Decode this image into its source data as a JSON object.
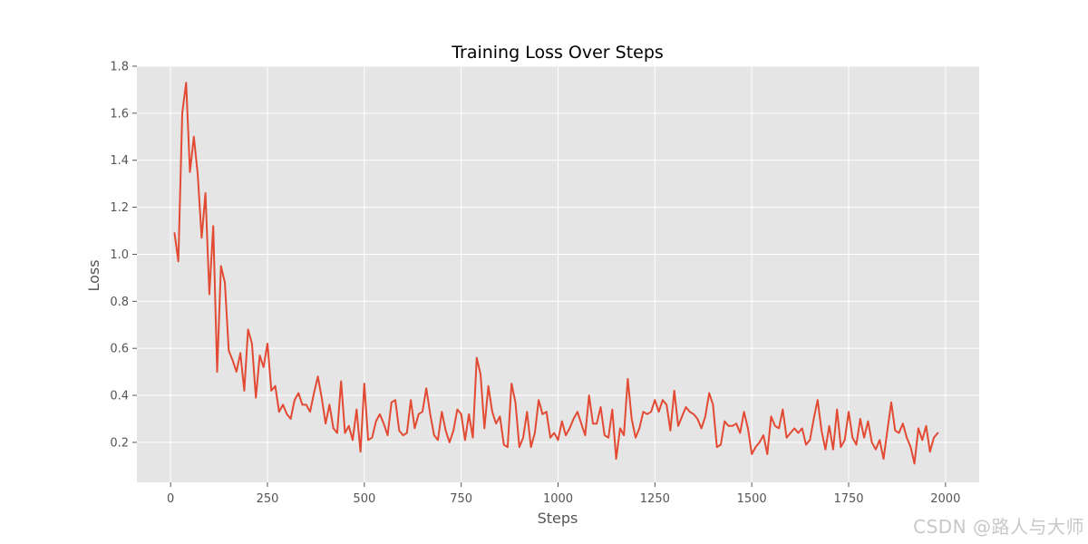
{
  "chart_data": {
    "type": "line",
    "title": "Training Loss Over Steps",
    "xlabel": "Steps",
    "ylabel": "Loss",
    "xlim": [
      -87,
      2087
    ],
    "ylim": [
      0.03,
      1.8
    ],
    "xticks": [
      0,
      250,
      500,
      750,
      1000,
      1250,
      1500,
      1750,
      2000
    ],
    "xtick_labels": [
      "0",
      "250",
      "500",
      "750",
      "1000",
      "1250",
      "1500",
      "1750",
      "2000"
    ],
    "yticks": [
      0.2,
      0.4,
      0.6,
      0.8,
      1.0,
      1.2,
      1.4,
      1.6,
      1.8
    ],
    "ytick_labels": [
      "0.2",
      "0.4",
      "0.6",
      "0.8",
      "1.0",
      "1.2",
      "1.4",
      "1.6",
      "1.8"
    ],
    "grid": true,
    "background": "#e5e5e5",
    "series": [
      {
        "name": "loss",
        "color": "#e24a33",
        "x": [
          10,
          20,
          30,
          40,
          50,
          60,
          70,
          80,
          90,
          100,
          110,
          120,
          130,
          140,
          150,
          160,
          170,
          180,
          190,
          200,
          210,
          220,
          230,
          240,
          250,
          260,
          270,
          280,
          290,
          300,
          310,
          320,
          330,
          340,
          350,
          360,
          370,
          380,
          390,
          400,
          410,
          420,
          430,
          440,
          450,
          460,
          470,
          480,
          490,
          500,
          510,
          520,
          530,
          540,
          550,
          560,
          570,
          580,
          590,
          600,
          610,
          620,
          630,
          640,
          650,
          660,
          670,
          680,
          690,
          700,
          710,
          720,
          730,
          740,
          750,
          760,
          770,
          780,
          790,
          800,
          810,
          820,
          830,
          840,
          850,
          860,
          870,
          880,
          890,
          900,
          910,
          920,
          930,
          940,
          950,
          960,
          970,
          980,
          990,
          1000,
          1010,
          1020,
          1030,
          1040,
          1050,
          1060,
          1070,
          1080,
          1090,
          1100,
          1110,
          1120,
          1130,
          1140,
          1150,
          1160,
          1170,
          1180,
          1190,
          1200,
          1210,
          1220,
          1230,
          1240,
          1250,
          1260,
          1270,
          1280,
          1290,
          1300,
          1310,
          1320,
          1330,
          1340,
          1350,
          1360,
          1370,
          1380,
          1390,
          1400,
          1410,
          1420,
          1430,
          1440,
          1450,
          1460,
          1470,
          1480,
          1490,
          1500,
          1510,
          1520,
          1530,
          1540,
          1550,
          1560,
          1570,
          1580,
          1590,
          1600,
          1610,
          1620,
          1630,
          1640,
          1650,
          1660,
          1670,
          1680,
          1690,
          1700,
          1710,
          1720,
          1730,
          1740,
          1750,
          1760,
          1770,
          1780,
          1790,
          1800,
          1810,
          1820,
          1830,
          1840,
          1850,
          1860,
          1870,
          1880,
          1890,
          1900,
          1910,
          1920,
          1930,
          1940,
          1950,
          1960,
          1970,
          1980
        ],
        "y": [
          1.09,
          0.97,
          1.6,
          1.73,
          1.35,
          1.5,
          1.34,
          1.07,
          1.26,
          0.83,
          1.12,
          0.5,
          0.95,
          0.88,
          0.59,
          0.55,
          0.5,
          0.58,
          0.42,
          0.68,
          0.62,
          0.39,
          0.57,
          0.52,
          0.62,
          0.42,
          0.44,
          0.33,
          0.36,
          0.32,
          0.3,
          0.38,
          0.41,
          0.36,
          0.36,
          0.33,
          0.41,
          0.48,
          0.39,
          0.28,
          0.36,
          0.26,
          0.24,
          0.46,
          0.24,
          0.27,
          0.21,
          0.34,
          0.16,
          0.45,
          0.21,
          0.22,
          0.29,
          0.32,
          0.28,
          0.23,
          0.37,
          0.38,
          0.25,
          0.23,
          0.24,
          0.38,
          0.26,
          0.32,
          0.33,
          0.43,
          0.32,
          0.23,
          0.21,
          0.33,
          0.25,
          0.2,
          0.25,
          0.34,
          0.32,
          0.21,
          0.32,
          0.22,
          0.56,
          0.49,
          0.26,
          0.44,
          0.33,
          0.28,
          0.31,
          0.19,
          0.18,
          0.45,
          0.37,
          0.18,
          0.22,
          0.33,
          0.18,
          0.24,
          0.38,
          0.32,
          0.33,
          0.22,
          0.24,
          0.21,
          0.29,
          0.23,
          0.26,
          0.3,
          0.33,
          0.28,
          0.23,
          0.4,
          0.28,
          0.28,
          0.35,
          0.23,
          0.22,
          0.34,
          0.13,
          0.26,
          0.23,
          0.47,
          0.3,
          0.22,
          0.26,
          0.33,
          0.32,
          0.33,
          0.38,
          0.33,
          0.38,
          0.36,
          0.25,
          0.42,
          0.27,
          0.31,
          0.35,
          0.33,
          0.32,
          0.3,
          0.26,
          0.31,
          0.41,
          0.36,
          0.18,
          0.19,
          0.29,
          0.27,
          0.27,
          0.28,
          0.24,
          0.33,
          0.26,
          0.15,
          0.18,
          0.2,
          0.23,
          0.15,
          0.31,
          0.27,
          0.26,
          0.34,
          0.22,
          0.24,
          0.26,
          0.24,
          0.26,
          0.19,
          0.21,
          0.3,
          0.38,
          0.25,
          0.17,
          0.27,
          0.17,
          0.34,
          0.18,
          0.21,
          0.33,
          0.22,
          0.19,
          0.3,
          0.22,
          0.29,
          0.2,
          0.17,
          0.21,
          0.13,
          0.25,
          0.37,
          0.25,
          0.24,
          0.28,
          0.22,
          0.18,
          0.11,
          0.26,
          0.21,
          0.27,
          0.16,
          0.22,
          0.24
        ]
      }
    ]
  },
  "watermark": "CSDN @路人与大师"
}
